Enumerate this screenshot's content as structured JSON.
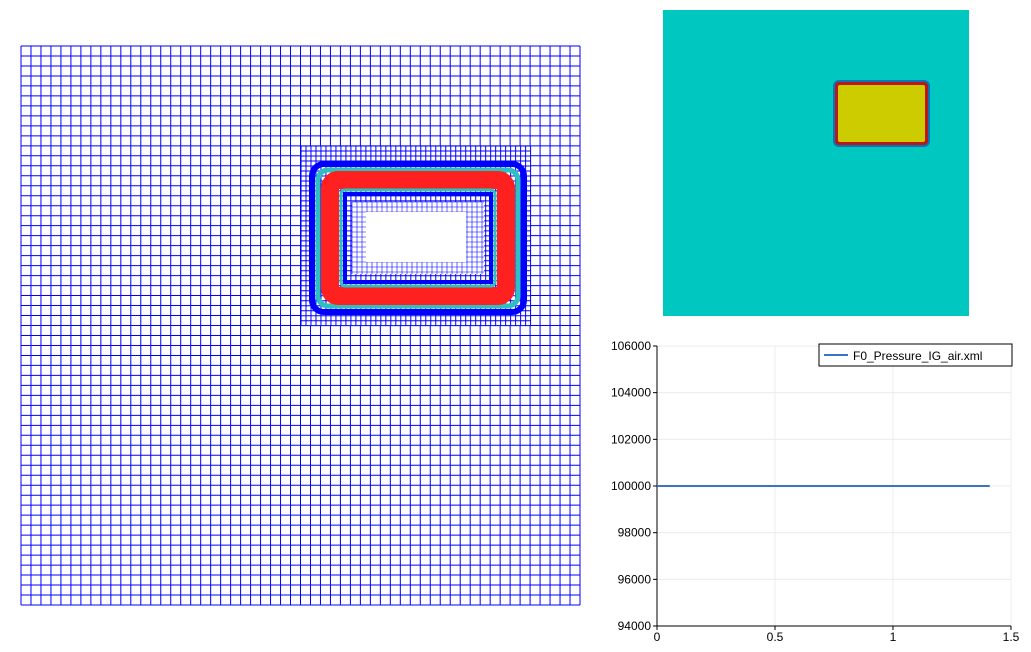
{
  "views": {
    "mesh": {
      "line_color": "#0000ff",
      "refinement_colors": [
        "#0000ff",
        "#2ec0c0",
        "#ff2020"
      ]
    },
    "field": {
      "background_color": "#00c8c0",
      "inclusion_color": "#cccc00",
      "border_colors": [
        "#b81818",
        "#1830b0"
      ]
    }
  },
  "chart_data": {
    "type": "line",
    "legend": {
      "position": "top-right",
      "entries": [
        "F0_Pressure_IG_air.xml"
      ]
    },
    "series": [
      {
        "name": "F0_Pressure_IG_air.xml",
        "color": "#3a74c4",
        "x": [
          0,
          1.41
        ],
        "y": [
          100000,
          100000
        ]
      }
    ],
    "xlim": [
      0,
      1.5
    ],
    "ylim": [
      94000,
      106000
    ],
    "xticks": [
      0,
      0.5,
      1,
      1.5
    ],
    "xtick_labels": [
      "0",
      "0.5",
      "1",
      "1.5"
    ],
    "yticks": [
      94000,
      96000,
      98000,
      100000,
      102000,
      104000,
      106000
    ],
    "ytick_labels": [
      "94000",
      "96000",
      "98000",
      "100000",
      "102000",
      "104000",
      "106000"
    ],
    "grid": true
  }
}
